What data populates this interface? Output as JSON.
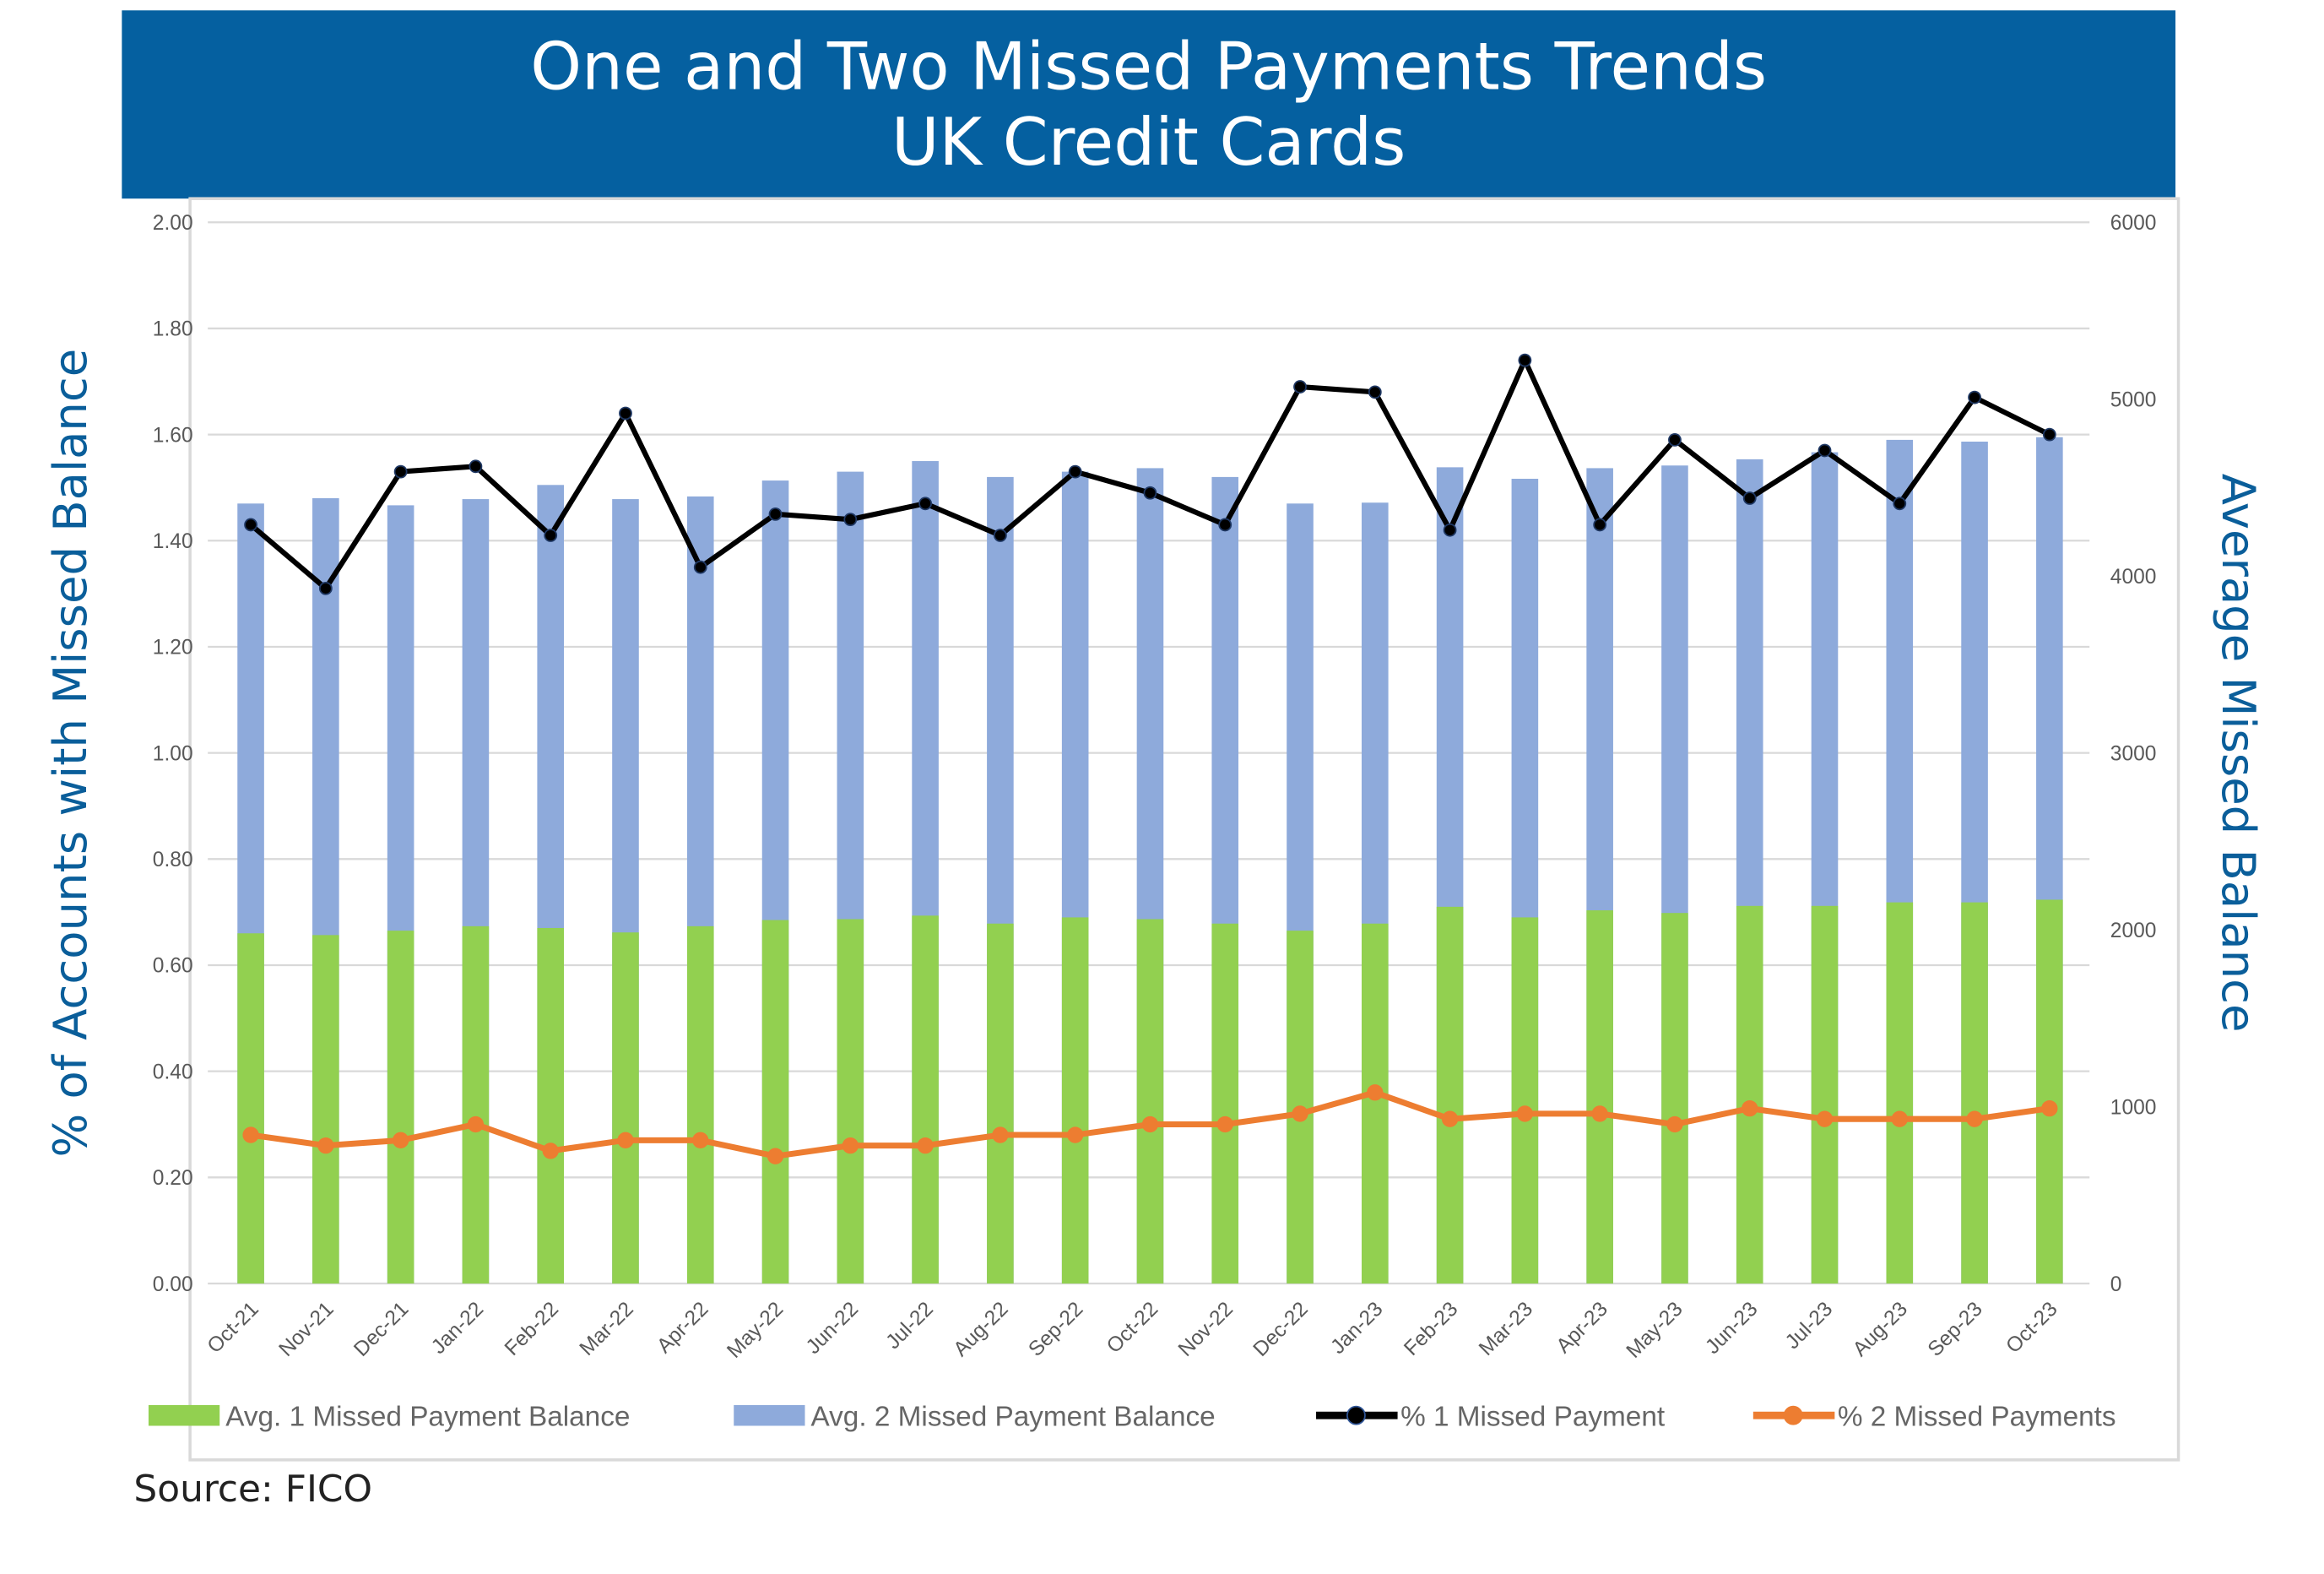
{
  "header": {
    "title_line1": "One and Two Missed Payments Trends",
    "title_line2": "UK Credit Cards",
    "background": "#0560a0"
  },
  "source": "Source: FICO",
  "chart_data": {
    "type": "bar+line",
    "categories": [
      "Oct-21",
      "Nov-21",
      "Dec-21",
      "Jan-22",
      "Feb-22",
      "Mar-22",
      "Apr-22",
      "May-22",
      "Jun-22",
      "Jul-22",
      "Aug-22",
      "Sep-22",
      "Oct-22",
      "Nov-22",
      "Dec-22",
      "Jan-23",
      "Feb-23",
      "Mar-23",
      "Apr-23",
      "May-23",
      "Jun-23",
      "Jul-23",
      "Aug-23",
      "Sep-23",
      "Oct-23"
    ],
    "ylabel_left": "% of Accounts with Missed Balance",
    "ylabel_right": "Average Missed Balance",
    "ylim_left": [
      0,
      2
    ],
    "yticks_left": [
      "0.00",
      "0.20",
      "0.40",
      "0.60",
      "0.80",
      "1.00",
      "1.20",
      "1.40",
      "1.60",
      "1.80",
      "2.00"
    ],
    "ylim_right": [
      0,
      6000
    ],
    "yticks_right": [
      "0",
      "1000",
      "2000",
      "3000",
      "4000",
      "5000",
      "6000"
    ],
    "grid": true,
    "legend_position": "bottom",
    "series": [
      {
        "name": "Avg. 1 Missed Payment Balance",
        "type": "bar",
        "axis": "right",
        "color": "#92d050",
        "values": [
          1980,
          1970,
          1995,
          2020,
          2010,
          1985,
          2020,
          2055,
          2060,
          2080,
          2035,
          2070,
          2060,
          2035,
          1995,
          2035,
          2130,
          2070,
          2110,
          2095,
          2135,
          2135,
          2155,
          2155,
          2170
        ]
      },
      {
        "name": "Avg. 2 Missed Payment Balance",
        "type": "bar",
        "axis": "right",
        "color": "#8eaadb",
        "values": [
          4410,
          4440,
          4400,
          4435,
          4515,
          4435,
          4450,
          4540,
          4590,
          4650,
          4560,
          4590,
          4610,
          4560,
          4410,
          4415,
          4615,
          4550,
          4610,
          4625,
          4660,
          4700,
          4770,
          4760,
          4785
        ]
      },
      {
        "name": "% 1 Missed Payment",
        "type": "line",
        "axis": "left",
        "color": "#000000",
        "values": [
          1.43,
          1.31,
          1.53,
          1.54,
          1.41,
          1.64,
          1.35,
          1.45,
          1.44,
          1.47,
          1.41,
          1.53,
          1.49,
          1.43,
          1.69,
          1.68,
          1.42,
          1.74,
          1.43,
          1.59,
          1.48,
          1.57,
          1.47,
          1.67,
          1.6
        ]
      },
      {
        "name": "% 2 Missed Payments",
        "type": "line",
        "axis": "left",
        "color": "#ed7d31",
        "values": [
          0.28,
          0.26,
          0.27,
          0.3,
          0.25,
          0.27,
          0.27,
          0.24,
          0.26,
          0.26,
          0.28,
          0.28,
          0.3,
          0.3,
          0.32,
          0.36,
          0.31,
          0.32,
          0.32,
          0.3,
          0.33,
          0.31,
          0.31,
          0.31,
          0.33
        ]
      }
    ]
  }
}
